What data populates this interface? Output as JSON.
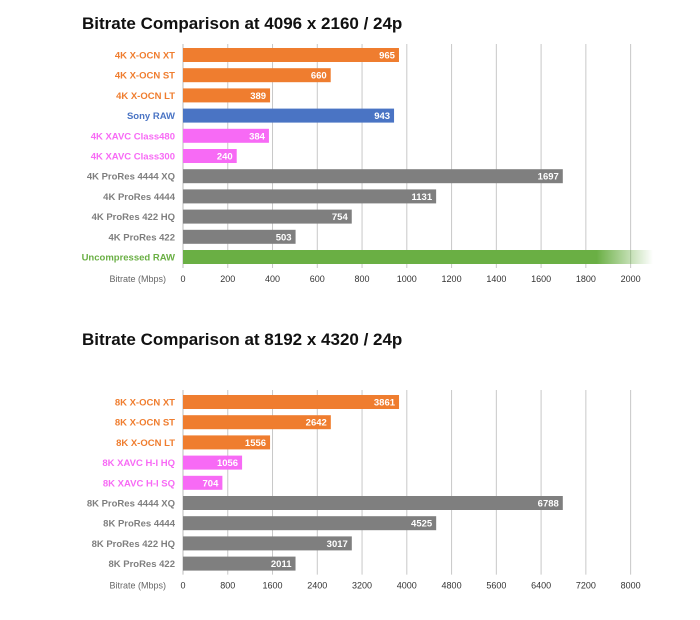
{
  "chart_data": [
    {
      "type": "bar",
      "orientation": "horizontal",
      "title": "Bitrate Comparison at 4096 x 2160 / 24p",
      "xlabel": "Bitrate (Mbps)",
      "xlim": [
        0,
        2100
      ],
      "ticks": [
        0,
        200,
        400,
        600,
        800,
        1000,
        1200,
        1400,
        1600,
        1800,
        2000
      ],
      "grid": true,
      "colors": {
        "orange": "#ef7d2f",
        "blue": "#4a74c4",
        "pink": "#f76af5",
        "gray": "#7f7f7f",
        "green": "#6aaf44"
      },
      "bars": [
        {
          "label": "4K X-OCN XT",
          "value": 965,
          "value_label": "965",
          "color": "orange"
        },
        {
          "label": "4K X-OCN ST",
          "value": 660,
          "value_label": "660",
          "color": "orange"
        },
        {
          "label": "4K X-OCN LT",
          "value": 389,
          "value_label": "389",
          "color": "orange"
        },
        {
          "label": "Sony RAW",
          "value": 943,
          "value_label": "943",
          "color": "blue"
        },
        {
          "label": "4K XAVC Class480",
          "value": 384,
          "value_label": "384",
          "color": "pink"
        },
        {
          "label": "4K XAVC Class300",
          "value": 240,
          "value_label": "240",
          "color": "pink"
        },
        {
          "label": "4K ProRes 4444 XQ",
          "value": 1697,
          "value_label": "1697",
          "color": "gray"
        },
        {
          "label": "4K ProRes 4444",
          "value": 1131,
          "value_label": "1131",
          "color": "gray"
        },
        {
          "label": "4K ProRes 422 HQ",
          "value": 754,
          "value_label": "754",
          "color": "gray"
        },
        {
          "label": "4K ProRes 422",
          "value": 503,
          "value_label": "503",
          "color": "gray"
        },
        {
          "label": "Uncompressed RAW",
          "value": 2100,
          "value_label": "",
          "color": "green",
          "fade": true
        }
      ]
    },
    {
      "type": "bar",
      "orientation": "horizontal",
      "title": "Bitrate Comparison at 8192 x 4320 / 24p",
      "xlabel": "Bitrate (Mbps)",
      "xlim": [
        0,
        8400
      ],
      "ticks": [
        0,
        800,
        1600,
        2400,
        3200,
        4000,
        4800,
        5600,
        6400,
        7200,
        8000
      ],
      "grid": true,
      "colors": {
        "orange": "#ef7d2f",
        "blue": "#4a74c4",
        "pink": "#f76af5",
        "gray": "#7f7f7f",
        "green": "#6aaf44"
      },
      "bars": [
        {
          "label": "8K X-OCN XT",
          "value": 3861,
          "value_label": "3861",
          "color": "orange"
        },
        {
          "label": "8K X-OCN ST",
          "value": 2642,
          "value_label": "2642",
          "color": "orange"
        },
        {
          "label": "8K X-OCN LT",
          "value": 1556,
          "value_label": "1556",
          "color": "orange"
        },
        {
          "label": "8K XAVC H-I HQ",
          "value": 1056,
          "value_label": "1056",
          "color": "pink"
        },
        {
          "label": "8K XAVC H-I SQ",
          "value": 704,
          "value_label": "704",
          "color": "pink"
        },
        {
          "label": "8K ProRes 4444 XQ",
          "value": 6788,
          "value_label": "6788",
          "color": "gray"
        },
        {
          "label": "8K ProRes 4444",
          "value": 4525,
          "value_label": "4525",
          "color": "gray"
        },
        {
          "label": "8K ProRes 422 HQ",
          "value": 3017,
          "value_label": "3017",
          "color": "gray"
        },
        {
          "label": "8K ProRes 422",
          "value": 2011,
          "value_label": "2011",
          "color": "gray"
        }
      ]
    }
  ]
}
